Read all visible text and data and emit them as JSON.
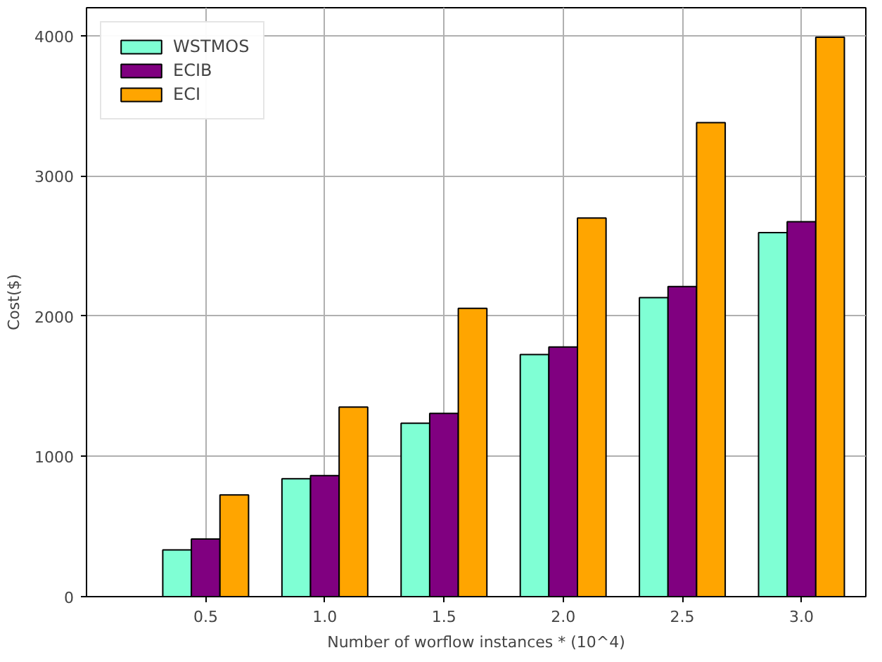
{
  "chart_data": {
    "type": "bar",
    "xlabel": "Number of worflow instances * (10^4)",
    "ylabel": "Cost($)",
    "x": [
      0.5,
      1.0,
      1.5,
      2.0,
      2.5,
      3.0
    ],
    "xlim": [
      0,
      3.27
    ],
    "xticks": [
      {
        "value": 0.5,
        "label": "0.5"
      },
      {
        "value": 1.0,
        "label": "1.0"
      },
      {
        "value": 1.5,
        "label": "1.5"
      },
      {
        "value": 2.0,
        "label": "2.0"
      },
      {
        "value": 2.5,
        "label": "2.5"
      },
      {
        "value": 3.0,
        "label": "3.0"
      }
    ],
    "ylim": [
      0,
      4200
    ],
    "yticks": [
      0,
      1000,
      2000,
      3000,
      4000
    ],
    "grid": true,
    "legend": "top left",
    "series": [
      {
        "name": "WSTMOS",
        "color": "#7fffd4",
        "values": [
          333,
          841,
          1237,
          1726,
          2133,
          2596
        ]
      },
      {
        "name": "ECIB",
        "color": "#800080",
        "values": [
          411,
          863,
          1307,
          1781,
          2211,
          2674
        ]
      },
      {
        "name": "ECI",
        "color": "#ffa500",
        "values": [
          726,
          1352,
          2056,
          2700,
          3381,
          3989
        ]
      }
    ]
  }
}
